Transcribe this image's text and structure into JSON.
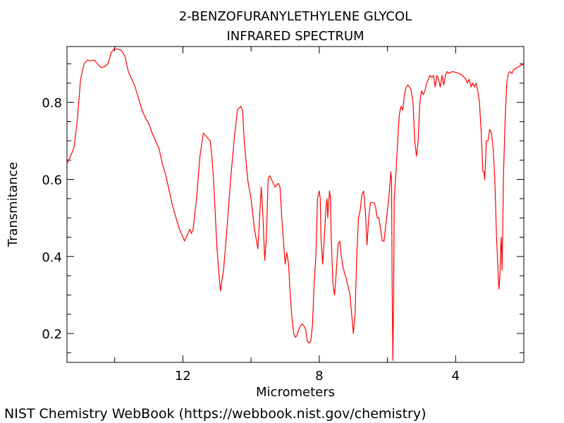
{
  "chart_data": {
    "type": "line",
    "title_lines": [
      "2-BENZOFURANYLETHYLENE GLYCOL",
      "INFRARED SPECTRUM"
    ],
    "xlabel": "Micrometers",
    "ylabel": "Transmitance",
    "xlim": [
      15.4,
      2.0
    ],
    "ylim": [
      0.125,
      0.945
    ],
    "x_ticks": [
      12,
      8,
      4
    ],
    "y_ticks": [
      0.2,
      0.4,
      0.6,
      0.8
    ],
    "grid": false,
    "series": [
      {
        "color": "#ff0000",
        "points": [
          [
            15.4,
            0.64
          ],
          [
            15.3,
            0.66
          ],
          [
            15.2,
            0.68
          ],
          [
            15.1,
            0.75
          ],
          [
            15.0,
            0.86
          ],
          [
            14.9,
            0.9
          ],
          [
            14.8,
            0.91
          ],
          [
            14.7,
            0.908
          ],
          [
            14.6,
            0.91
          ],
          [
            14.5,
            0.9
          ],
          [
            14.4,
            0.89
          ],
          [
            14.3,
            0.893
          ],
          [
            14.2,
            0.9
          ],
          [
            14.1,
            0.93
          ],
          [
            14.0,
            0.94
          ],
          [
            13.9,
            0.938
          ],
          [
            13.8,
            0.935
          ],
          [
            13.7,
            0.92
          ],
          [
            13.6,
            0.88
          ],
          [
            13.5,
            0.86
          ],
          [
            13.4,
            0.84
          ],
          [
            13.3,
            0.81
          ],
          [
            13.2,
            0.78
          ],
          [
            13.1,
            0.76
          ],
          [
            13.0,
            0.745
          ],
          [
            12.9,
            0.72
          ],
          [
            12.8,
            0.7
          ],
          [
            12.7,
            0.68
          ],
          [
            12.6,
            0.64
          ],
          [
            12.5,
            0.61
          ],
          [
            12.4,
            0.57
          ],
          [
            12.3,
            0.53
          ],
          [
            12.2,
            0.5
          ],
          [
            12.1,
            0.47
          ],
          [
            12.0,
            0.45
          ],
          [
            11.95,
            0.44
          ],
          [
            11.9,
            0.45
          ],
          [
            11.8,
            0.47
          ],
          [
            11.75,
            0.46
          ],
          [
            11.7,
            0.47
          ],
          [
            11.6,
            0.55
          ],
          [
            11.5,
            0.66
          ],
          [
            11.4,
            0.72
          ],
          [
            11.3,
            0.71
          ],
          [
            11.2,
            0.7
          ],
          [
            11.15,
            0.66
          ],
          [
            11.1,
            0.6
          ],
          [
            11.0,
            0.42
          ],
          [
            10.9,
            0.31
          ],
          [
            10.8,
            0.37
          ],
          [
            10.7,
            0.48
          ],
          [
            10.6,
            0.6
          ],
          [
            10.5,
            0.7
          ],
          [
            10.4,
            0.78
          ],
          [
            10.3,
            0.79
          ],
          [
            10.25,
            0.78
          ],
          [
            10.2,
            0.7
          ],
          [
            10.1,
            0.6
          ],
          [
            10.0,
            0.55
          ],
          [
            9.9,
            0.47
          ],
          [
            9.8,
            0.42
          ],
          [
            9.75,
            0.5
          ],
          [
            9.7,
            0.58
          ],
          [
            9.65,
            0.5
          ],
          [
            9.6,
            0.39
          ],
          [
            9.55,
            0.45
          ],
          [
            9.5,
            0.6
          ],
          [
            9.45,
            0.61
          ],
          [
            9.4,
            0.6
          ],
          [
            9.35,
            0.59
          ],
          [
            9.3,
            0.58
          ],
          [
            9.2,
            0.59
          ],
          [
            9.15,
            0.58
          ],
          [
            9.1,
            0.5
          ],
          [
            9.0,
            0.38
          ],
          [
            8.95,
            0.41
          ],
          [
            8.9,
            0.38
          ],
          [
            8.85,
            0.3
          ],
          [
            8.8,
            0.24
          ],
          [
            8.75,
            0.2
          ],
          [
            8.7,
            0.19
          ],
          [
            8.65,
            0.195
          ],
          [
            8.6,
            0.21
          ],
          [
            8.55,
            0.22
          ],
          [
            8.5,
            0.225
          ],
          [
            8.45,
            0.22
          ],
          [
            8.4,
            0.21
          ],
          [
            8.35,
            0.18
          ],
          [
            8.3,
            0.175
          ],
          [
            8.25,
            0.18
          ],
          [
            8.2,
            0.22
          ],
          [
            8.15,
            0.33
          ],
          [
            8.1,
            0.4
          ],
          [
            8.05,
            0.55
          ],
          [
            8.0,
            0.57
          ],
          [
            7.97,
            0.55
          ],
          [
            7.95,
            0.45
          ],
          [
            7.9,
            0.38
          ],
          [
            7.85,
            0.45
          ],
          [
            7.8,
            0.53
          ],
          [
            7.77,
            0.55
          ],
          [
            7.75,
            0.5
          ],
          [
            7.7,
            0.57
          ],
          [
            7.67,
            0.55
          ],
          [
            7.65,
            0.45
          ],
          [
            7.6,
            0.33
          ],
          [
            7.55,
            0.3
          ],
          [
            7.5,
            0.36
          ],
          [
            7.45,
            0.43
          ],
          [
            7.4,
            0.44
          ],
          [
            7.35,
            0.4
          ],
          [
            7.3,
            0.37
          ],
          [
            7.2,
            0.34
          ],
          [
            7.1,
            0.3
          ],
          [
            7.05,
            0.25
          ],
          [
            7.0,
            0.2
          ],
          [
            6.95,
            0.25
          ],
          [
            6.9,
            0.4
          ],
          [
            6.85,
            0.5
          ],
          [
            6.8,
            0.52
          ],
          [
            6.75,
            0.56
          ],
          [
            6.7,
            0.57
          ],
          [
            6.65,
            0.52
          ],
          [
            6.6,
            0.43
          ],
          [
            6.55,
            0.5
          ],
          [
            6.5,
            0.54
          ],
          [
            6.4,
            0.54
          ],
          [
            6.35,
            0.53
          ],
          [
            6.3,
            0.5
          ],
          [
            6.25,
            0.5
          ],
          [
            6.2,
            0.47
          ],
          [
            6.15,
            0.44
          ],
          [
            6.1,
            0.44
          ],
          [
            6.05,
            0.48
          ],
          [
            6.0,
            0.52
          ],
          [
            5.95,
            0.56
          ],
          [
            5.9,
            0.62
          ],
          [
            5.88,
            0.6
          ],
          [
            5.86,
            0.3
          ],
          [
            5.84,
            0.13
          ],
          [
            5.82,
            0.3
          ],
          [
            5.8,
            0.55
          ],
          [
            5.75,
            0.62
          ],
          [
            5.7,
            0.7
          ],
          [
            5.65,
            0.77
          ],
          [
            5.6,
            0.79
          ],
          [
            5.55,
            0.78
          ],
          [
            5.5,
            0.82
          ],
          [
            5.45,
            0.84
          ],
          [
            5.4,
            0.845
          ],
          [
            5.35,
            0.84
          ],
          [
            5.3,
            0.83
          ],
          [
            5.25,
            0.8
          ],
          [
            5.2,
            0.7
          ],
          [
            5.15,
            0.66
          ],
          [
            5.1,
            0.7
          ],
          [
            5.05,
            0.8
          ],
          [
            5.0,
            0.83
          ],
          [
            4.95,
            0.82
          ],
          [
            4.9,
            0.83
          ],
          [
            4.85,
            0.85
          ],
          [
            4.8,
            0.86
          ],
          [
            4.75,
            0.87
          ],
          [
            4.7,
            0.865
          ],
          [
            4.65,
            0.87
          ],
          [
            4.6,
            0.84
          ],
          [
            4.55,
            0.87
          ],
          [
            4.5,
            0.86
          ],
          [
            4.45,
            0.84
          ],
          [
            4.4,
            0.87
          ],
          [
            4.35,
            0.845
          ],
          [
            4.3,
            0.87
          ],
          [
            4.25,
            0.88
          ],
          [
            4.2,
            0.875
          ],
          [
            4.1,
            0.88
          ],
          [
            4.0,
            0.878
          ],
          [
            3.9,
            0.875
          ],
          [
            3.8,
            0.87
          ],
          [
            3.7,
            0.86
          ],
          [
            3.65,
            0.85
          ],
          [
            3.6,
            0.86
          ],
          [
            3.55,
            0.84
          ],
          [
            3.5,
            0.85
          ],
          [
            3.45,
            0.84
          ],
          [
            3.4,
            0.85
          ],
          [
            3.35,
            0.83
          ],
          [
            3.3,
            0.8
          ],
          [
            3.25,
            0.72
          ],
          [
            3.2,
            0.62
          ],
          [
            3.17,
            0.62
          ],
          [
            3.15,
            0.6
          ],
          [
            3.12,
            0.65
          ],
          [
            3.1,
            0.7
          ],
          [
            3.05,
            0.7
          ],
          [
            3.0,
            0.73
          ],
          [
            2.95,
            0.72
          ],
          [
            2.9,
            0.68
          ],
          [
            2.85,
            0.6
          ],
          [
            2.8,
            0.45
          ],
          [
            2.75,
            0.35
          ],
          [
            2.73,
            0.315
          ],
          [
            2.7,
            0.35
          ],
          [
            2.68,
            0.42
          ],
          [
            2.66,
            0.45
          ],
          [
            2.64,
            0.365
          ],
          [
            2.62,
            0.45
          ],
          [
            2.6,
            0.6
          ],
          [
            2.55,
            0.75
          ],
          [
            2.5,
            0.85
          ],
          [
            2.45,
            0.875
          ],
          [
            2.4,
            0.88
          ],
          [
            2.35,
            0.875
          ],
          [
            2.3,
            0.885
          ],
          [
            2.2,
            0.89
          ],
          [
            2.1,
            0.895
          ],
          [
            2.05,
            0.9
          ],
          [
            2.0,
            0.895
          ]
        ]
      }
    ],
    "source_note": "NIST Chemistry WebBook (https://webbook.nist.gov/chemistry)"
  }
}
